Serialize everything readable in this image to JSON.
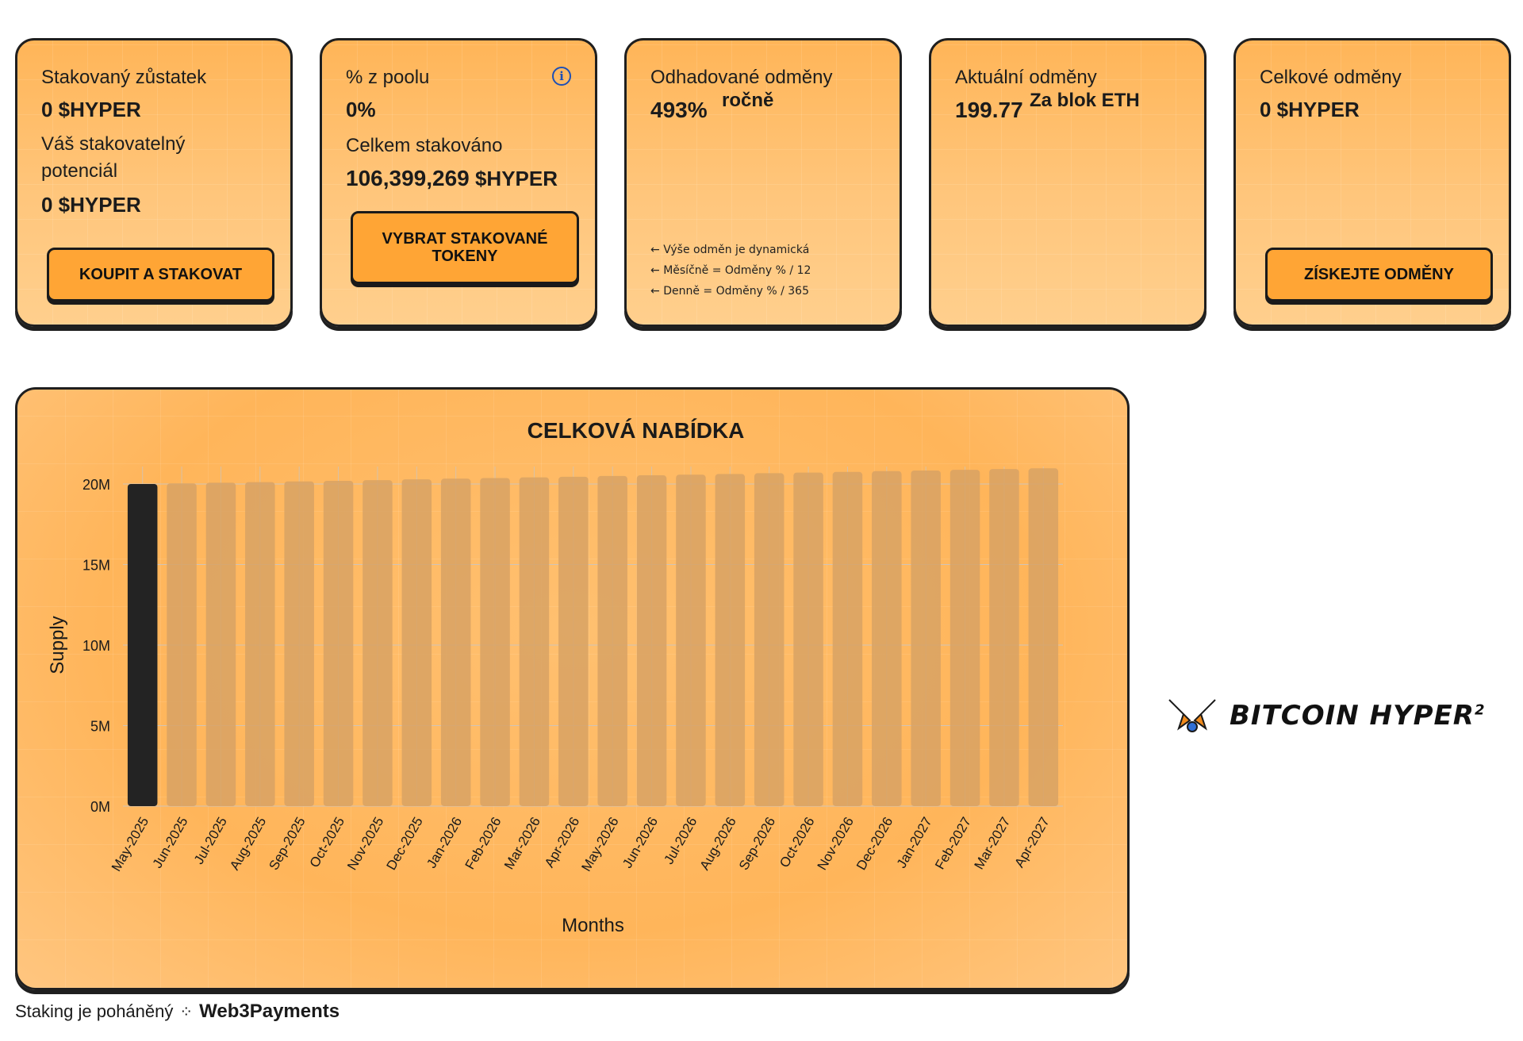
{
  "cards": {
    "staked_balance": {
      "label": "Stakovaný zůstatek",
      "value": "0 $HYPER",
      "potential_label": "Váš stakovatelný potenciál",
      "potential_value": "0 $HYPER",
      "button": "KOUPIT A STAKOVAT"
    },
    "pool_share": {
      "label": "% z poolu",
      "value": "0%",
      "total_label": "Celkem stakováno",
      "total_value": "106,399,269",
      "total_unit": "$HYPER",
      "button": "VYBRAT STAKOVANÉ TOKENY",
      "info_icon": "info-icon"
    },
    "estimated_rewards": {
      "label": "Odhadované odměny",
      "value": "493%",
      "suffix": "ročně",
      "notes": [
        "Výše odměn je dynamická",
        "Měsíčně = Odměny % / 12",
        "Denně = Odměny % / 365"
      ],
      "note_icon": "arrow-left-icon"
    },
    "current_rewards": {
      "label": "Aktuální odměny",
      "value": "199.77",
      "suffix": "Za blok ETH"
    },
    "total_rewards": {
      "label": "Celkové odměny",
      "value": "0 $HYPER",
      "button": "ZÍSKEJTE ODMĚNY"
    }
  },
  "chart_data": {
    "type": "bar",
    "title": "CELKOVÁ NABÍDKA",
    "xlabel": "Months",
    "ylabel": "Supply",
    "ylim": [
      0,
      20000000
    ],
    "yticks": [
      "0M",
      "5M",
      "10M",
      "15M",
      "20M"
    ],
    "grid": true,
    "categories": [
      "May-2025",
      "Jun-2025",
      "Jul-2025",
      "Aug-2025",
      "Sep-2025",
      "Oct-2025",
      "Nov-2025",
      "Dec-2025",
      "Jan-2026",
      "Feb-2026",
      "Mar-2026",
      "Apr-2026",
      "May-2026",
      "Jun-2026",
      "Jul-2026",
      "Aug-2026",
      "Sep-2026",
      "Oct-2026",
      "Nov-2026",
      "Dec-2026",
      "Jan-2027",
      "Feb-2027",
      "Mar-2027",
      "Apr-2027"
    ],
    "values": [
      20000000,
      20040000,
      20080000,
      20120000,
      20160000,
      20200000,
      20240000,
      20290000,
      20330000,
      20370000,
      20410000,
      20450000,
      20500000,
      20540000,
      20580000,
      20620000,
      20670000,
      20710000,
      20750000,
      20800000,
      20840000,
      20880000,
      20930000,
      20970000
    ],
    "highlight_index": 0,
    "colors": {
      "highlight": "#232323",
      "bar": "#d8a264",
      "grid": "#cfc4b8"
    }
  },
  "footer": {
    "text": "Staking je poháněný",
    "brand": "Web3Payments"
  },
  "logo": {
    "text": "BITCOIN HYPER",
    "superscript": "2",
    "icon": "bitcoin-hyper-logo-icon",
    "accent": "#f08a1c"
  }
}
